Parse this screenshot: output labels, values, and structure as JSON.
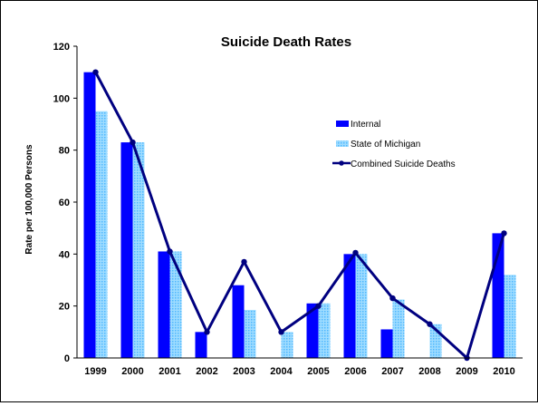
{
  "chart_data": {
    "type": "bar",
    "title": "Suicide Death Rates",
    "xlabel": "",
    "ylabel": "Rate per 100,000 Persons",
    "categories": [
      "1999",
      "2000",
      "2001",
      "2002",
      "2003",
      "2004",
      "2005",
      "2006",
      "2007",
      "2008",
      "2009",
      "2010"
    ],
    "ylim": [
      0,
      120
    ],
    "yticks": [
      "0",
      "20",
      "40",
      "60",
      "80",
      "100",
      "120"
    ],
    "series": [
      {
        "name": "Internal",
        "type": "bar",
        "color": "#0000ff",
        "values": [
          110,
          83,
          41,
          10,
          28,
          0,
          21,
          40,
          11,
          0,
          0,
          48
        ]
      },
      {
        "name": "State of Michigan",
        "type": "bar",
        "color": "#66ccff",
        "pattern": "dotted",
        "values": [
          95,
          83,
          41,
          0,
          18.5,
          10,
          21,
          40,
          22.5,
          13,
          0,
          32
        ]
      },
      {
        "name": "Combined Suicide Deaths",
        "type": "line",
        "color": "#000080",
        "values": [
          110,
          83,
          41,
          10,
          37,
          10,
          20,
          40.5,
          23,
          13,
          0,
          48
        ]
      }
    ],
    "legend_position": "right",
    "grid": false
  }
}
